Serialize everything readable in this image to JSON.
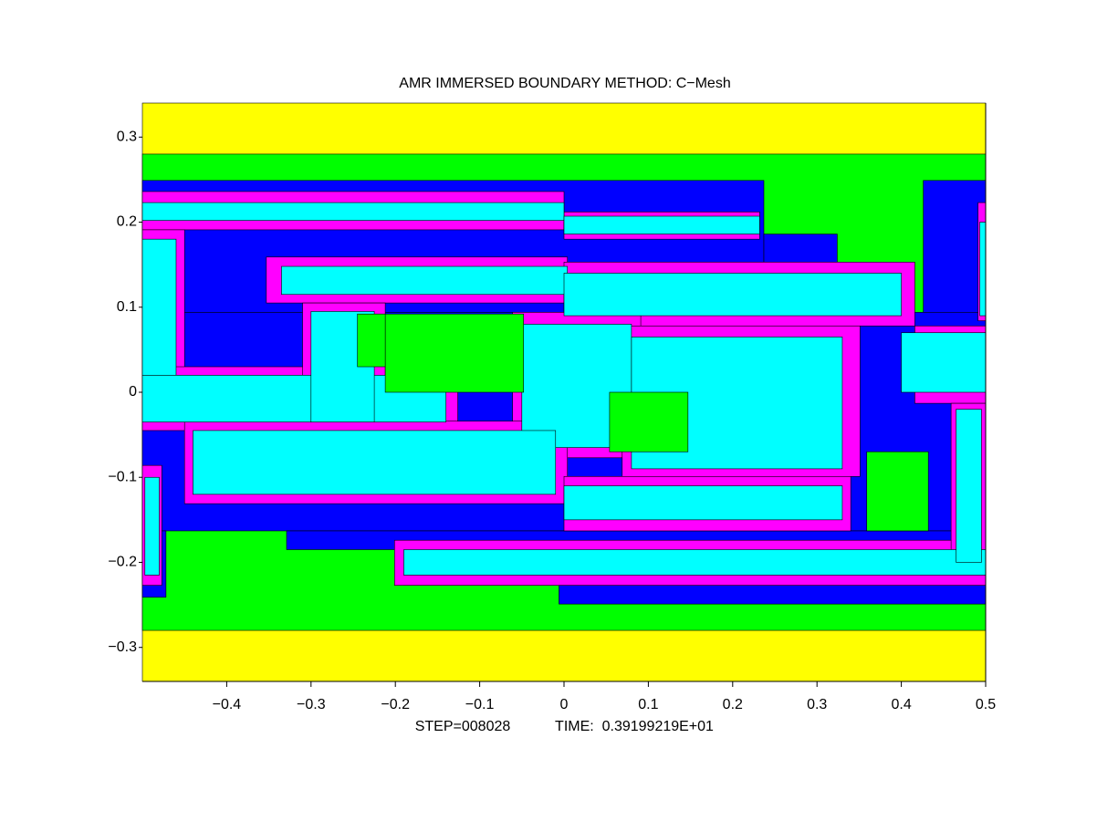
{
  "chart_data": {
    "type": "patches",
    "title": "AMR IMMERSED BOUNDARY METHOD: C−Mesh",
    "footer": [
      "STEP=008028",
      "TIME:  0.39199219E+01"
    ],
    "xlim": [
      -0.5,
      0.5
    ],
    "ylim": [
      -0.34,
      0.34
    ],
    "xticks": [
      {
        "value": -0.4,
        "label": "−0.4"
      },
      {
        "value": -0.3,
        "label": "−0.3"
      },
      {
        "value": -0.2,
        "label": "−0.2"
      },
      {
        "value": -0.1,
        "label": "−0.1"
      },
      0,
      0.1,
      0.2,
      0.3,
      0.4,
      0.5
    ],
    "yticks": [
      {
        "value": -0.3,
        "label": "−0.3"
      },
      {
        "value": -0.2,
        "label": "−0.2"
      },
      {
        "value": -0.1,
        "label": "−0.1"
      },
      0,
      0.1,
      0.2,
      0.3
    ],
    "series": [
      {
        "color": "#ffff00",
        "rects": [
          [
            -0.5,
            0.5,
            -0.34,
            0.34
          ]
        ]
      },
      {
        "color": "#00ff00",
        "rects": [
          [
            -0.5,
            0.5,
            -0.28,
            0.28
          ]
        ]
      },
      {
        "color": "#0000ff",
        "rects": [
          [
            -0.5,
            0.237,
            0.094,
            0.249
          ],
          [
            0.237,
            0.324,
            0.094,
            0.186
          ],
          [
            0.426,
            0.5,
            0.078,
            0.249
          ],
          [
            -0.5,
            0.5,
            -0.163,
            0.094
          ],
          [
            -0.5,
            -0.472,
            -0.241,
            -0.163
          ],
          [
            -0.329,
            0.5,
            -0.185,
            -0.163
          ],
          [
            -0.19,
            0.5,
            -0.227,
            -0.185
          ],
          [
            -0.006,
            0.5,
            -0.249,
            -0.227
          ]
        ]
      },
      {
        "color": "#ff00ff",
        "rects": [
          [
            -0.5,
            0,
            0.191,
            0.236
          ],
          [
            0,
            0.232,
            0.18,
            0.212
          ],
          [
            -0.5,
            -0.45,
            0.009,
            0.191
          ],
          [
            -0.353,
            0.004,
            0.105,
            0.159
          ],
          [
            0,
            0.416,
            0.078,
            0.153
          ],
          [
            0.416,
            0.5,
            -0.013,
            0.078
          ],
          [
            -0.5,
            -0.126,
            -0.045,
            0.03
          ],
          [
            -0.31,
            -0.212,
            -0.045,
            0.105
          ],
          [
            -0.061,
            0.091,
            -0.077,
            0.094
          ],
          [
            0.069,
            0.351,
            -0.099,
            0.078
          ],
          [
            -0.45,
            0.004,
            -0.131,
            -0.034
          ],
          [
            0,
            0.34,
            -0.163,
            -0.099
          ],
          [
            -0.201,
            0.5,
            -0.227,
            -0.174
          ],
          [
            0.459,
            0.5,
            -0.206,
            -0.013
          ],
          [
            0.491,
            0.5,
            0.084,
            0.223
          ],
          [
            -0.5,
            -0.477,
            -0.227,
            -0.086
          ]
        ]
      },
      {
        "color": "#00ffff",
        "rects": [
          [
            -0.5,
            0,
            0.202,
            0.223
          ],
          [
            0,
            0.232,
            0.186,
            0.207
          ],
          [
            -0.5,
            -0.46,
            0.02,
            0.18
          ],
          [
            -0.335,
            0.004,
            0.115,
            0.148
          ],
          [
            0,
            0.4,
            0.09,
            0.14
          ],
          [
            0.4,
            0.5,
            0,
            0.07
          ],
          [
            -0.5,
            -0.14,
            -0.035,
            0.02
          ],
          [
            -0.3,
            -0.225,
            -0.035,
            0.095
          ],
          [
            -0.05,
            0.08,
            -0.065,
            0.08
          ],
          [
            0.08,
            0.33,
            -0.09,
            0.065
          ],
          [
            -0.44,
            -0.01,
            -0.12,
            -0.045
          ],
          [
            0,
            0.33,
            -0.15,
            -0.11
          ],
          [
            -0.19,
            0.5,
            -0.215,
            -0.185
          ],
          [
            0.465,
            0.495,
            -0.2,
            -0.02
          ],
          [
            0.493,
            0.5,
            0.09,
            0.2
          ],
          [
            -0.497,
            -0.48,
            -0.215,
            -0.1
          ]
        ]
      },
      {
        "color": "#00ff00",
        "rects": [
          [
            -0.212,
            -0.048,
            0,
            0.092
          ],
          [
            -0.245,
            -0.212,
            0.03,
            0.092
          ],
          [
            0.054,
            0.147,
            -0.07,
            0
          ],
          [
            0.359,
            0.432,
            -0.163,
            -0.07
          ]
        ]
      }
    ]
  }
}
